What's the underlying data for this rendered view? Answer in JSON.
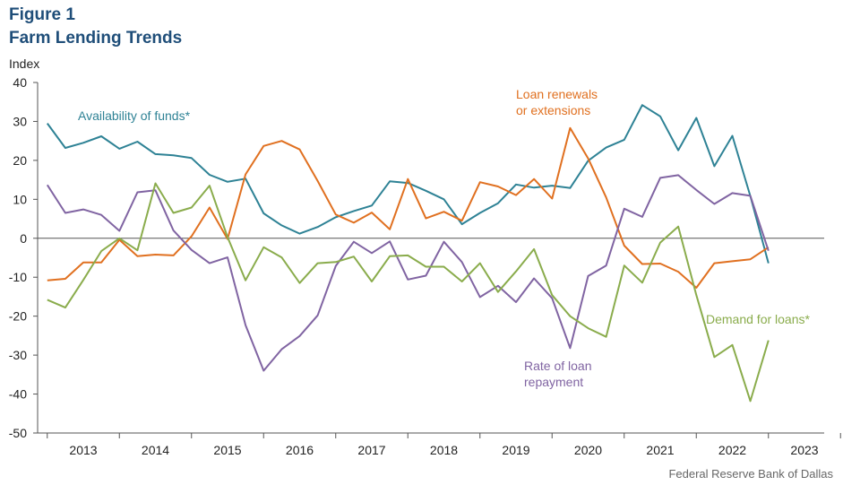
{
  "figure": {
    "number": "Figure 1",
    "title": "Farm Lending Trends",
    "ylabel": "Index",
    "source": "Federal Reserve Bank of Dallas"
  },
  "chart_data": {
    "type": "line",
    "title": "Farm Lending Trends",
    "ylabel": "Index",
    "xlabel": "",
    "ylim": [
      -50,
      40
    ],
    "yticks": [
      40,
      30,
      20,
      10,
      0,
      -10,
      -20,
      -30,
      -40,
      -50
    ],
    "xticks": [
      "2013",
      "2014",
      "2015",
      "2016",
      "2017",
      "2018",
      "2019",
      "2020",
      "2021",
      "2022",
      "2023"
    ],
    "x_start": 2012.5,
    "x_step": 0.25,
    "series": [
      {
        "name": "Availability of funds*",
        "label_lines": [
          "Availability of funds*"
        ],
        "color": "#2e8295",
        "values": [
          29.5,
          23.2,
          24.5,
          26.2,
          23.0,
          24.8,
          21.6,
          21.3,
          20.6,
          16.3,
          14.5,
          15.3,
          6.4,
          3.3,
          1.2,
          2.9,
          5.4,
          7.0,
          8.4,
          14.6,
          14.2,
          12.2,
          10.0,
          3.6,
          6.5,
          9.0,
          13.8,
          13.0,
          13.5,
          12.9,
          19.9,
          23.3,
          25.3,
          34.2,
          31.3,
          22.6,
          30.9,
          18.5,
          26.3,
          10.8,
          -6.4
        ]
      },
      {
        "name": "Loan renewals or extensions",
        "label_lines": [
          "Loan renewals",
          "or extensions"
        ],
        "color": "#e07020",
        "values": [
          -10.8,
          -10.4,
          -6.2,
          -6.2,
          -0.4,
          -4.6,
          -4.2,
          -4.4,
          0.5,
          7.9,
          -0.2,
          16.4,
          23.7,
          25.0,
          22.8,
          14.7,
          6.1,
          4.0,
          6.6,
          2.3,
          15.2,
          5.1,
          6.8,
          4.5,
          14.4,
          13.3,
          11.1,
          15.2,
          10.2,
          28.3,
          20.5,
          10.5,
          -1.9,
          -6.6,
          -6.5,
          -8.6,
          -12.7,
          -6.4,
          -5.9,
          -5.4,
          -2.3
        ]
      },
      {
        "name": "Rate of loan repayment",
        "label_lines": [
          "Rate of loan",
          "repayment"
        ],
        "color": "#8064a2",
        "values": [
          13.7,
          6.5,
          7.4,
          6.0,
          1.9,
          11.8,
          12.3,
          2.0,
          -3.0,
          -6.4,
          -4.9,
          -22.3,
          -34.0,
          -28.5,
          -25.1,
          -19.8,
          -7.1,
          -0.9,
          -3.8,
          -0.8,
          -10.6,
          -9.6,
          -0.9,
          -6.1,
          -15.1,
          -12.2,
          -16.4,
          -10.3,
          -15.4,
          -28.2,
          -9.7,
          -7.0,
          7.6,
          5.5,
          15.5,
          16.2,
          12.4,
          8.8,
          11.6,
          10.9,
          -3.2
        ]
      },
      {
        "name": "Demand for loans*",
        "label_lines": [
          "Demand for loans*"
        ],
        "color": "#8aac4c",
        "values": [
          -15.8,
          -17.8,
          -10.7,
          -3.3,
          0.0,
          -3.1,
          14.1,
          6.5,
          7.9,
          13.5,
          0.3,
          -10.8,
          -2.3,
          -4.9,
          -11.5,
          -6.4,
          -6.1,
          -4.7,
          -11.1,
          -4.6,
          -4.4,
          -7.3,
          -7.3,
          -11.1,
          -6.4,
          -13.8,
          -8.5,
          -2.8,
          -14.6,
          -20.0,
          -23.1,
          -25.3,
          -7.0,
          -11.4,
          -1.1,
          3.0,
          -14.6,
          -30.5,
          -27.4,
          -41.8,
          -26.2
        ]
      }
    ]
  }
}
